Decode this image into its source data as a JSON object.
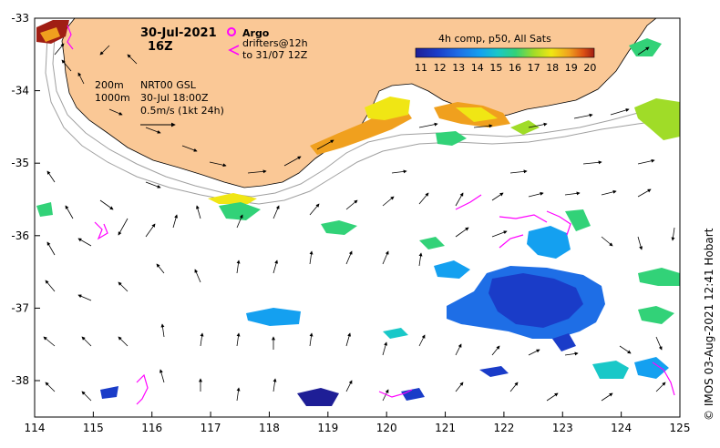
{
  "header": {
    "date": "30-Jul-2021",
    "time": "16Z",
    "argo_label": "Argo",
    "drifters_line1": "drifters@12h",
    "drifters_line2": "to 31/07 12Z",
    "comp_title": "4h comp, p50, All Sats"
  },
  "info": {
    "contour1": "200m",
    "contour2": "1000m",
    "product": "NRT00 GSL",
    "valid": "30-Jul 18:00Z",
    "scale": "0.5m/s (1kt 24h)"
  },
  "credit": "© IMOS 03-Aug-2021 12:41 Hobart",
  "colorbar": {
    "labels": [
      "11",
      "12",
      "13",
      "14",
      "15",
      "16",
      "17",
      "18",
      "19",
      "20"
    ],
    "colors": [
      "#1e1e96",
      "#1a3cc8",
      "#1e6ee6",
      "#14a0f0",
      "#19c8c8",
      "#32d278",
      "#a0dc28",
      "#f0e614",
      "#f0a01e",
      "#dc5014",
      "#a01e14"
    ]
  },
  "axes": {
    "x_ticks": [
      "114",
      "115",
      "116",
      "117",
      "118",
      "119",
      "120",
      "121",
      "122",
      "123",
      "124",
      "125"
    ],
    "y_ticks": [
      "-33",
      "-34",
      "-35",
      "-36",
      "-37",
      "-38"
    ]
  },
  "colors": {
    "land": "#fac896",
    "argo": "#ff00ff",
    "drifter": "#ff00ff",
    "contour": "#a0a0a0"
  }
}
